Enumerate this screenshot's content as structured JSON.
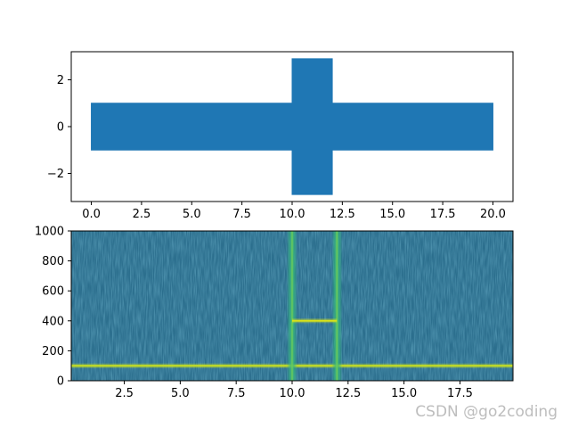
{
  "watermark": "CSDN @go2coding",
  "chart_data": [
    {
      "type": "line",
      "title": "",
      "xlabel": "",
      "ylabel": "",
      "xlim": [
        -1.0,
        21.0
      ],
      "ylim": [
        -3.2,
        3.2
      ],
      "xticks": [
        0.0,
        2.5,
        5.0,
        7.5,
        10.0,
        12.5,
        15.0,
        17.5,
        20.0
      ],
      "xtick_labels": [
        "0.0",
        "2.5",
        "5.0",
        "7.5",
        "10.0",
        "12.5",
        "15.0",
        "17.5",
        "20.0"
      ],
      "yticks": [
        -2,
        0,
        2
      ],
      "ytick_labels": [
        "−2",
        "0",
        "2"
      ],
      "color": "#1f77b4",
      "series": [
        {
          "x": [
            0.0,
            10.0,
            10.0,
            12.0,
            12.0,
            20.0
          ],
          "upper": [
            1.0,
            1.0,
            2.9,
            2.9,
            1.0,
            1.0
          ],
          "lower": [
            -1.0,
            -1.0,
            -2.9,
            -2.9,
            -1.0,
            -1.0
          ]
        }
      ]
    },
    {
      "type": "heatmap",
      "title": "",
      "xlabel": "",
      "ylabel": "",
      "xlim": [
        0.13,
        19.87
      ],
      "ylim": [
        0,
        1000
      ],
      "xticks": [
        2.5,
        5.0,
        7.5,
        10.0,
        12.5,
        15.0,
        17.5
      ],
      "xtick_labels": [
        "2.5",
        "5.0",
        "7.5",
        "10.0",
        "12.5",
        "15.0",
        "17.5"
      ],
      "yticks": [
        0,
        200,
        400,
        600,
        800,
        1000
      ],
      "ytick_labels": [
        "0",
        "200",
        "400",
        "600",
        "800",
        "1000"
      ],
      "colormap": "viridis",
      "background_color": "#2c6f8e",
      "features": [
        {
          "kind": "constant_tone",
          "frequency": 100,
          "t_start": 0.13,
          "t_end": 19.87,
          "color": "#c8e020"
        },
        {
          "kind": "transient",
          "time": 10.0,
          "color": "#2fb47c"
        },
        {
          "kind": "transient",
          "time": 12.0,
          "color": "#2fb47c"
        },
        {
          "kind": "tone",
          "frequency": 400,
          "t_start": 10.0,
          "t_end": 12.0,
          "color": "#d8e219"
        }
      ]
    }
  ]
}
